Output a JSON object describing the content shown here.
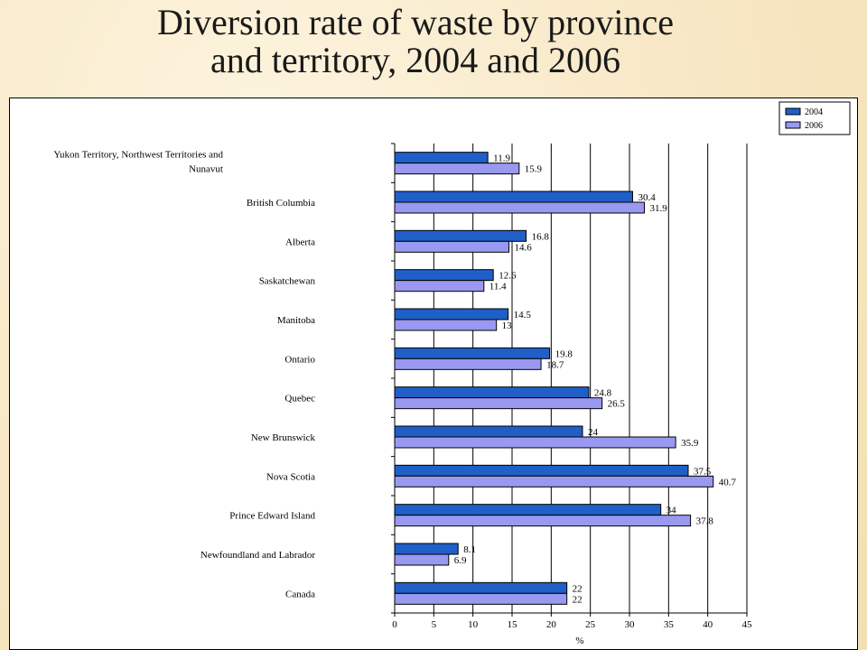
{
  "slide": {
    "title_line1": "Diversion rate of waste by province",
    "title_line2": "and territory, 2004 and 2006"
  },
  "chart_data": {
    "type": "bar",
    "orientation": "horizontal",
    "categories": [
      [
        "Yukon Territory, Northwest Territories and",
        "Nunavut"
      ],
      [
        "British Columbia"
      ],
      [
        "Alberta"
      ],
      [
        "Saskatchewan"
      ],
      [
        "Manitoba"
      ],
      [
        "Ontario"
      ],
      [
        "Quebec"
      ],
      [
        "New Brunswick"
      ],
      [
        "Nova Scotia"
      ],
      [
        "Prince Edward Island"
      ],
      [
        "Newfoundland and Labrador"
      ],
      [
        "Canada"
      ]
    ],
    "series": [
      {
        "name": "2004",
        "color": "#1f5fc8",
        "values": [
          11.9,
          30.4,
          16.8,
          12.6,
          14.5,
          19.8,
          24.8,
          24,
          37.5,
          34,
          8.1,
          22
        ]
      },
      {
        "name": "2006",
        "color": "#9999f2",
        "values": [
          15.9,
          31.9,
          14.6,
          11.4,
          13,
          18.7,
          26.5,
          35.9,
          40.7,
          37.8,
          6.9,
          22
        ]
      }
    ],
    "xlabel": "%",
    "xlim": [
      0,
      45
    ],
    "xticks": [
      0,
      5,
      10,
      15,
      20,
      25,
      30,
      35,
      40,
      45
    ],
    "grid": "vertical",
    "legend_position": "top-right"
  }
}
